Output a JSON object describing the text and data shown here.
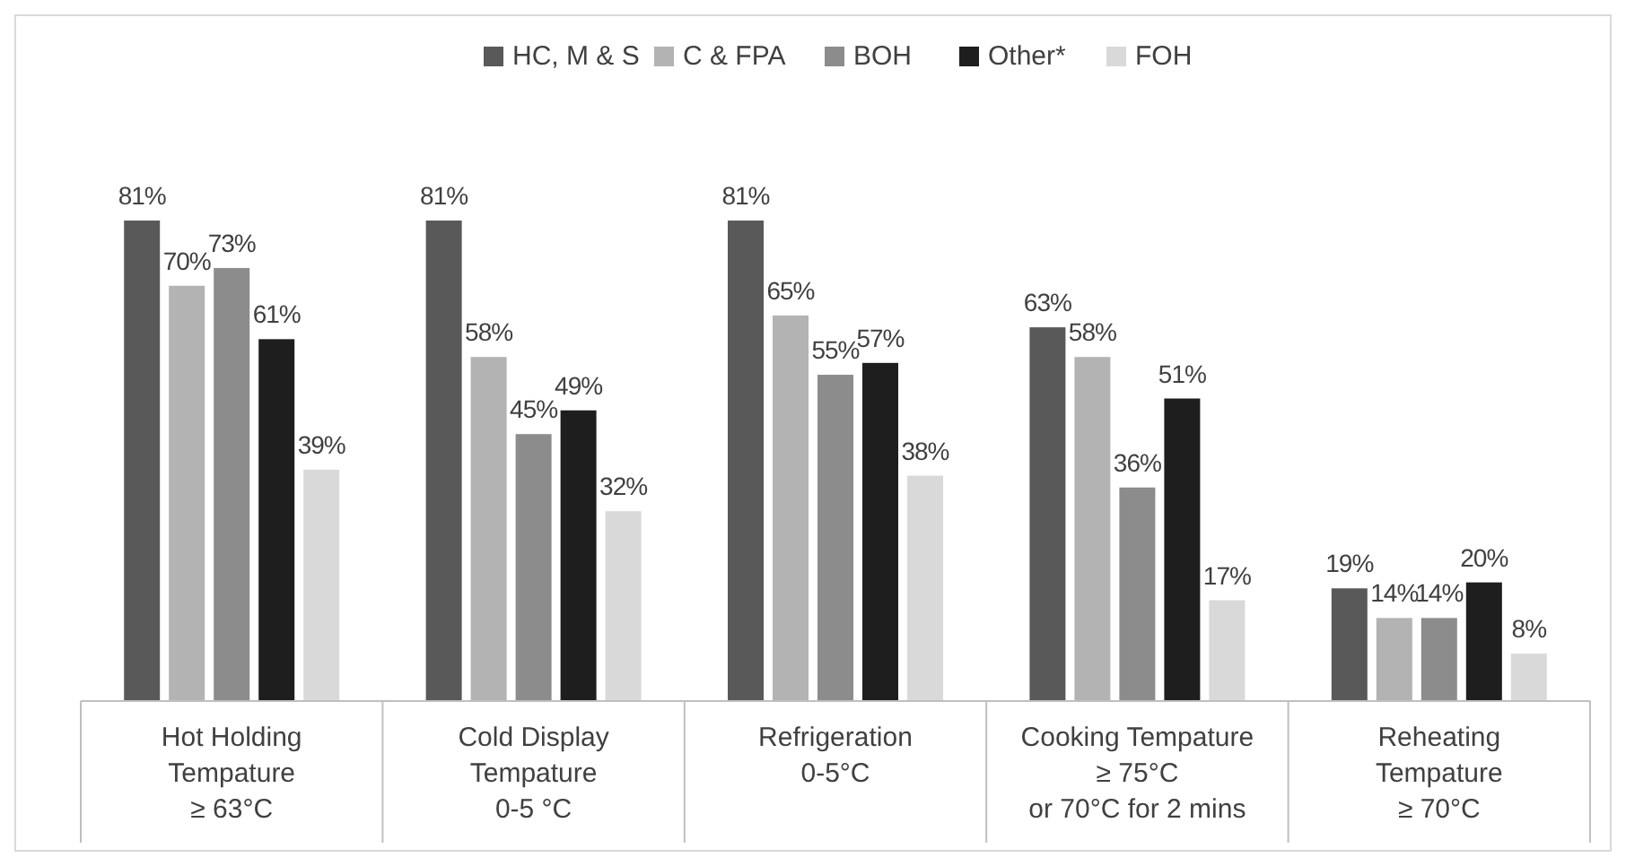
{
  "chart_data": {
    "type": "bar",
    "categories": [
      "Hot Holding\nTempature\n≥ 63°C",
      "Cold Display\nTempature\n0-5 °C",
      "Refrigeration\n0-5°C",
      "Cooking Tempature\n≥ 75°C\nor 70°C for 2 mins",
      "Reheating\nTempature\n≥ 70°C"
    ],
    "series": [
      {
        "name": "HC, M & S",
        "color": "#595959",
        "values": [
          81,
          81,
          81,
          63,
          19
        ],
        "value_labels": [
          "81%",
          "81%",
          "81%",
          "63%",
          "19%"
        ]
      },
      {
        "name": "C & FPA",
        "color": "#b3b3b3",
        "values": [
          70,
          58,
          65,
          58,
          14
        ],
        "value_labels": [
          "70%",
          "58%",
          "65%",
          "58%",
          "14%"
        ]
      },
      {
        "name": "BOH",
        "color": "#8c8c8c",
        "values": [
          73,
          45,
          55,
          36,
          14
        ],
        "value_labels": [
          "73%",
          "45%",
          "55%",
          "36%",
          "14%"
        ]
      },
      {
        "name": "Other*",
        "color": "#1e1e1e",
        "values": [
          61,
          49,
          57,
          51,
          20
        ],
        "value_labels": [
          "61%",
          "49%",
          "57%",
          "51%",
          "20%"
        ]
      },
      {
        "name": "FOH",
        "color": "#d9d9d9",
        "values": [
          39,
          32,
          38,
          17,
          8
        ],
        "value_labels": [
          "39%",
          "32%",
          "38%",
          "17%",
          "8%"
        ]
      }
    ],
    "tick_labels": "x",
    "legend": "top"
  }
}
